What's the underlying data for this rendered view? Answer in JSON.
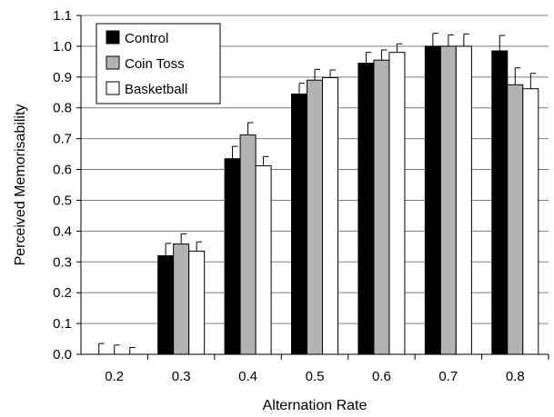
{
  "chart_data": {
    "type": "bar",
    "xlabel": "Alternation Rate",
    "ylabel": "Perceived Memorisability",
    "ylim": [
      0,
      1.1
    ],
    "yticks": [
      "0.0",
      "0.1",
      "0.2",
      "0.3",
      "0.4",
      "0.5",
      "0.6",
      "0.7",
      "0.8",
      "0.9",
      "1.0",
      "1.1"
    ],
    "categories": [
      "0.2",
      "0.3",
      "0.4",
      "0.5",
      "0.6",
      "0.7",
      "0.8"
    ],
    "series": [
      {
        "name": "Control",
        "color": "#000000",
        "values": [
          0.0,
          0.32,
          0.635,
          0.845,
          0.945,
          1.0,
          0.985
        ],
        "errors": [
          0.035,
          0.04,
          0.04,
          0.035,
          0.035,
          0.042,
          0.05
        ]
      },
      {
        "name": "Coin Toss",
        "color": "#b3b3b3",
        "values": [
          0.0,
          0.358,
          0.712,
          0.89,
          0.955,
          1.0,
          0.875
        ],
        "errors": [
          0.03,
          0.033,
          0.04,
          0.035,
          0.033,
          0.037,
          0.055
        ]
      },
      {
        "name": "Basketball",
        "color": "#ffffff",
        "values": [
          0.0,
          0.335,
          0.612,
          0.898,
          0.98,
          1.0,
          0.862
        ],
        "errors": [
          0.022,
          0.03,
          0.03,
          0.025,
          0.028,
          0.04,
          0.05
        ]
      }
    ],
    "grid": "horizontal",
    "legend_position": "top-left"
  }
}
